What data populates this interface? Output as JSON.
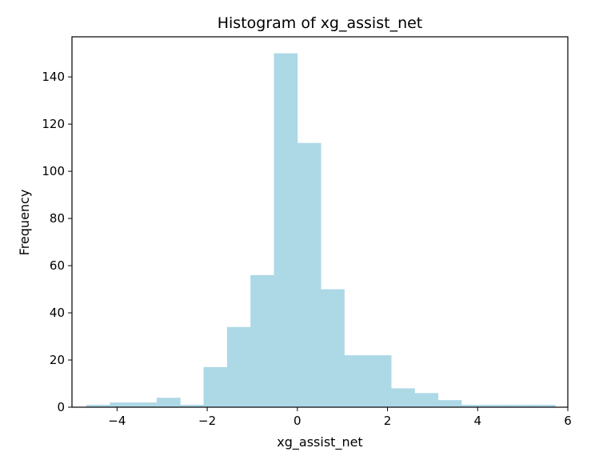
{
  "chart_data": {
    "type": "bar",
    "title": "Histogram of xg_assist_net",
    "xlabel": "xg_assist_net",
    "ylabel": "Frequency",
    "bar_color": "#add8e6",
    "xlim": [
      -5.0,
      6.0
    ],
    "ylim": [
      0,
      157
    ],
    "x_ticks": [
      -4,
      -2,
      0,
      2,
      4,
      6
    ],
    "x_tick_labels": [
      "−4",
      "−2",
      "0",
      "2",
      "4",
      "6"
    ],
    "y_ticks": [
      0,
      20,
      40,
      60,
      80,
      100,
      120,
      140
    ],
    "y_tick_labels": [
      "0",
      "20",
      "40",
      "60",
      "80",
      "100",
      "120",
      "140"
    ],
    "grid": false,
    "bins": [
      {
        "start": -4.68,
        "end": -4.16,
        "count": 1
      },
      {
        "start": -4.16,
        "end": -3.64,
        "count": 2
      },
      {
        "start": -3.64,
        "end": -3.12,
        "count": 2
      },
      {
        "start": -3.12,
        "end": -2.6,
        "count": 4
      },
      {
        "start": -2.6,
        "end": -2.08,
        "count": 1
      },
      {
        "start": -2.08,
        "end": -1.56,
        "count": 17
      },
      {
        "start": -1.56,
        "end": -1.04,
        "count": 34
      },
      {
        "start": -1.04,
        "end": -0.52,
        "count": 56
      },
      {
        "start": -0.52,
        "end": 0.0,
        "count": 150
      },
      {
        "start": 0.0,
        "end": 0.52,
        "count": 112
      },
      {
        "start": 0.52,
        "end": 1.04,
        "count": 50
      },
      {
        "start": 1.04,
        "end": 1.56,
        "count": 22
      },
      {
        "start": 1.56,
        "end": 2.08,
        "count": 22
      },
      {
        "start": 2.08,
        "end": 2.6,
        "count": 8
      },
      {
        "start": 2.6,
        "end": 3.12,
        "count": 6
      },
      {
        "start": 3.12,
        "end": 3.64,
        "count": 3
      },
      {
        "start": 3.64,
        "end": 4.16,
        "count": 1
      },
      {
        "start": 4.16,
        "end": 4.68,
        "count": 1
      },
      {
        "start": 4.68,
        "end": 5.2,
        "count": 1
      },
      {
        "start": 5.2,
        "end": 5.72,
        "count": 1
      }
    ]
  }
}
